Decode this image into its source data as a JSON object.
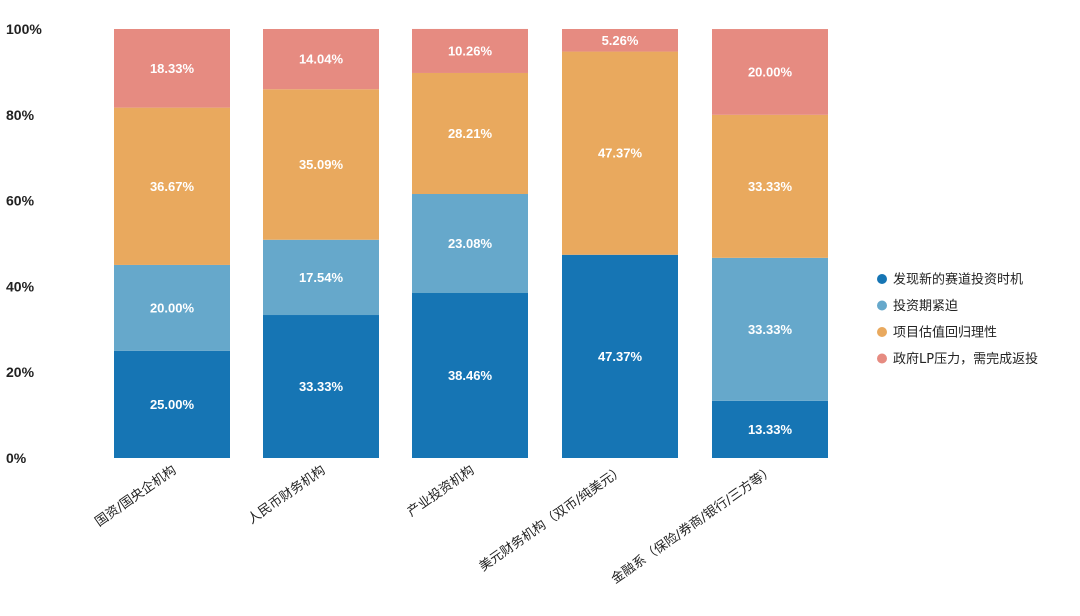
{
  "chart_data": {
    "type": "bar",
    "stacked": true,
    "title": "",
    "xlabel": "",
    "ylabel": "",
    "ylim": [
      0,
      100
    ],
    "y_ticks": [
      "0%",
      "20%",
      "40%",
      "60%",
      "80%",
      "100%"
    ],
    "grid": false,
    "legend_position": "right",
    "categories": [
      "国资/国央企机构",
      "人民币财务机构",
      "产业投资机构",
      "美元财务机构（双币/纯美元）",
      "金融系（保险/券商/银行/三方等）"
    ],
    "series": [
      {
        "name": "发现新的赛道投资时机",
        "color": "#1675b4",
        "values": [
          25.0,
          33.33,
          38.46,
          47.37,
          13.33
        ],
        "labels": [
          "25.00%",
          "33.33%",
          "38.46%",
          "47.37%",
          "13.33%"
        ]
      },
      {
        "name": "投资期紧迫",
        "color": "#66a8cb",
        "values": [
          20.0,
          17.54,
          23.08,
          0,
          33.33
        ],
        "labels": [
          "20.00%",
          "17.54%",
          "23.08%",
          "",
          "33.33%"
        ]
      },
      {
        "name": "项目估值回归理性",
        "color": "#e9a95e",
        "values": [
          36.67,
          35.09,
          28.21,
          47.37,
          33.33
        ],
        "labels": [
          "36.67%",
          "35.09%",
          "28.21%",
          "47.37%",
          "33.33%"
        ]
      },
      {
        "name": "政府LP压力，需完成返投",
        "color": "#e68b81",
        "values": [
          18.33,
          14.04,
          10.26,
          5.26,
          20.0
        ],
        "labels": [
          "18.33%",
          "14.04%",
          "10.26%",
          "5.26%",
          "20.00%"
        ]
      }
    ]
  }
}
